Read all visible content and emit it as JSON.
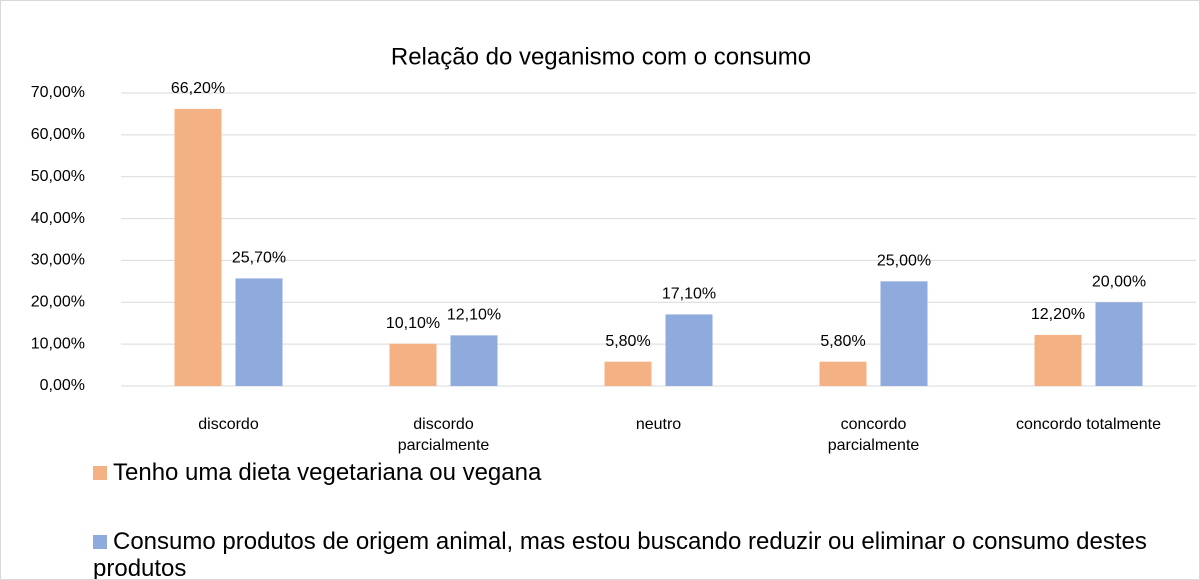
{
  "chart_data": {
    "type": "bar",
    "title": "Relação do veganismo com o consumo",
    "categories": [
      "discordo",
      "discordo parcialmente",
      "neutro",
      "concordo parcialmente",
      "concordo totalmente"
    ],
    "series": [
      {
        "name": "Tenho uma dieta vegetariana ou vegana",
        "color": "#f4b183",
        "values": [
          66.2,
          10.1,
          5.8,
          5.8,
          12.2
        ],
        "value_labels": [
          "66,20%",
          "10,10%",
          "5,80%",
          "5,80%",
          "12,20%"
        ]
      },
      {
        "name": "Consumo produtos de origem animal, mas estou buscando reduzir ou eliminar o consumo destes produtos",
        "color": "#8faadc",
        "values": [
          25.7,
          12.1,
          17.1,
          25.0,
          20.0
        ],
        "value_labels": [
          "25,70%",
          "12,10%",
          "17,10%",
          "25,00%",
          "20,00%"
        ]
      }
    ],
    "ylim": [
      0,
      70
    ],
    "yticks": [
      {
        "value": 0,
        "label": "0,00%"
      },
      {
        "value": 10,
        "label": "10,00%"
      },
      {
        "value": 20,
        "label": "20,00%"
      },
      {
        "value": 30,
        "label": "30,00%"
      },
      {
        "value": 40,
        "label": "40,00%"
      },
      {
        "value": 50,
        "label": "50,00%"
      },
      {
        "value": 60,
        "label": "60,00%"
      },
      {
        "value": 70,
        "label": "70,00%"
      }
    ],
    "grid": true,
    "legend": "bottom"
  }
}
